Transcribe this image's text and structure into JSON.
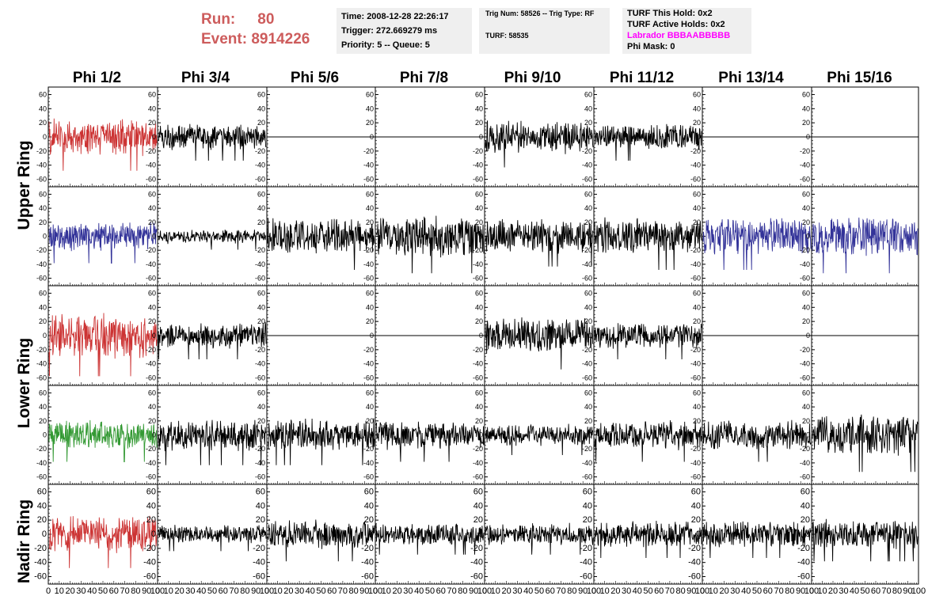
{
  "header": {
    "run_label": "Run:",
    "run_value": "80",
    "event_label": "Event:",
    "event_value": "8914226",
    "time": "Time: 2008-12-28 22:26:17",
    "trigger": "Trigger: 272.669279 ms",
    "priority": "Priority: 5 -- Queue: 5",
    "trig_num": "Trig Num: 58526 -- Trig Type: RF",
    "turf": "TURF: 58535",
    "turf_this_hold": "TURF This Hold: 0x2",
    "turf_active_holds": "TURF Active Holds: 0x2",
    "labrador": "Labrador BBBAABBBBB",
    "phi_mask": "Phi Mask: 0"
  },
  "columns": [
    "Phi 1/2",
    "Phi 3/4",
    "Phi 5/6",
    "Phi 7/8",
    "Phi 9/10",
    "Phi 11/12",
    "Phi 13/14",
    "Phi 15/16"
  ],
  "rings": [
    "Upper Ring",
    "Lower Ring",
    "Nadir Ring"
  ],
  "chart_data": {
    "type": "line",
    "x_range": [
      0,
      100
    ],
    "y_range": [
      -60,
      60
    ],
    "y_ticks": [
      -60,
      -40,
      -20,
      0,
      20,
      40,
      60
    ],
    "x_ticks": [
      0,
      10,
      20,
      30,
      40,
      50,
      60,
      70,
      80,
      90,
      100
    ],
    "x_tick_labels": [
      "0",
      "10",
      "20",
      "30",
      "40",
      "50",
      "60",
      "70",
      "80",
      "90",
      "100"
    ],
    "grid": false,
    "colors": {
      "red": "#cc3333",
      "blue": "#333399",
      "green": "#339933",
      "black": "#000000"
    },
    "panel_rows": [
      {
        "ring": "Upper Ring",
        "row": 1,
        "panels": [
          {
            "color": "red",
            "amp": 20,
            "flat": false
          },
          {
            "color": "black",
            "amp": 14,
            "flat": false
          },
          {
            "color": "black",
            "amp": 0,
            "flat": true
          },
          {
            "color": "black",
            "amp": 0,
            "flat": true
          },
          {
            "color": "black",
            "amp": 18,
            "flat": false
          },
          {
            "color": "black",
            "amp": 14,
            "flat": false
          },
          {
            "color": "black",
            "amp": 0,
            "flat": true
          },
          {
            "color": "black",
            "amp": 0,
            "flat": true
          }
        ]
      },
      {
        "ring": "Upper Ring",
        "row": 2,
        "panels": [
          {
            "color": "blue",
            "amp": 16,
            "flat": false
          },
          {
            "color": "black",
            "amp": 8,
            "flat": false
          },
          {
            "color": "black",
            "amp": 20,
            "flat": false
          },
          {
            "color": "black",
            "amp": 22,
            "flat": false
          },
          {
            "color": "black",
            "amp": 18,
            "flat": false
          },
          {
            "color": "black",
            "amp": 20,
            "flat": false
          },
          {
            "color": "blue",
            "amp": 20,
            "flat": false
          },
          {
            "color": "blue",
            "amp": 22,
            "flat": false
          }
        ]
      },
      {
        "ring": "Lower Ring",
        "row": 3,
        "panels": [
          {
            "color": "red",
            "amp": 24,
            "flat": false
          },
          {
            "color": "black",
            "amp": 14,
            "flat": false
          },
          {
            "color": "black",
            "amp": 0,
            "flat": true
          },
          {
            "color": "black",
            "amp": 0,
            "flat": true
          },
          {
            "color": "black",
            "amp": 20,
            "flat": false
          },
          {
            "color": "black",
            "amp": 14,
            "flat": false
          },
          {
            "color": "black",
            "amp": 0,
            "flat": true
          },
          {
            "color": "black",
            "amp": 0,
            "flat": true
          }
        ]
      },
      {
        "ring": "Lower Ring",
        "row": 4,
        "panels": [
          {
            "color": "green",
            "amp": 16,
            "flat": false
          },
          {
            "color": "black",
            "amp": 18,
            "flat": false
          },
          {
            "color": "black",
            "amp": 18,
            "flat": false
          },
          {
            "color": "black",
            "amp": 16,
            "flat": false
          },
          {
            "color": "black",
            "amp": 12,
            "flat": false
          },
          {
            "color": "black",
            "amp": 16,
            "flat": false
          },
          {
            "color": "black",
            "amp": 16,
            "flat": false
          },
          {
            "color": "black",
            "amp": 22,
            "flat": false
          }
        ]
      },
      {
        "ring": "Nadir Ring",
        "row": 5,
        "panels": [
          {
            "color": "red",
            "amp": 20,
            "flat": false
          },
          {
            "color": "black",
            "amp": 10,
            "flat": false
          },
          {
            "color": "black",
            "amp": 16,
            "flat": false
          },
          {
            "color": "black",
            "amp": 12,
            "flat": false
          },
          {
            "color": "black",
            "amp": 12,
            "flat": false
          },
          {
            "color": "black",
            "amp": 14,
            "flat": false
          },
          {
            "color": "black",
            "amp": 14,
            "flat": false
          },
          {
            "color": "black",
            "amp": 16,
            "flat": false
          }
        ]
      }
    ]
  }
}
